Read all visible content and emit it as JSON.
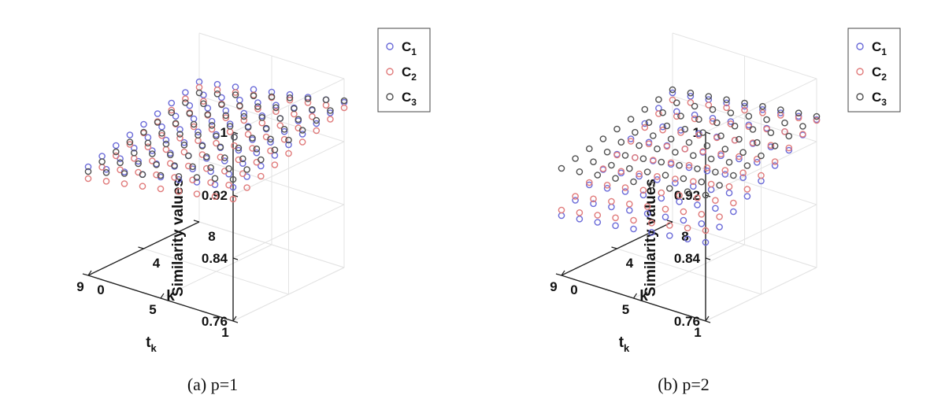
{
  "chart_data": [
    {
      "type": "scatter",
      "subtype": "3d-scatter",
      "caption": "(a) p=1",
      "xlabel": "t",
      "xlabel_sub": "k",
      "ylabel": "k",
      "zlabel": "Similarity values",
      "x_ticks": [
        "1",
        "5",
        "9"
      ],
      "y_ticks": [
        "0",
        "4",
        "8"
      ],
      "z_ticks": [
        "0.76",
        "0.84",
        "0.92",
        "1"
      ],
      "xlim": [
        1,
        9
      ],
      "ylim": [
        0,
        8
      ],
      "zlim": [
        0.76,
        1
      ],
      "grid": true,
      "legend_position": "top-right",
      "legend": [
        {
          "label": "C",
          "sub": "1",
          "color": "#6a6ad8"
        },
        {
          "label": "C",
          "sub": "2",
          "color": "#e07a7a"
        },
        {
          "label": "C",
          "sub": "3",
          "color": "#505050"
        }
      ],
      "series": [
        {
          "name": "C1",
          "color": "#6a6ad8",
          "base": 0.93,
          "slope_t": -0.004,
          "slope_k": 0.005
        },
        {
          "name": "C2",
          "color": "#e07a7a",
          "base": 0.915,
          "slope_t": -0.004,
          "slope_k": 0.006
        },
        {
          "name": "C3",
          "color": "#505050",
          "base": 0.94,
          "slope_t": -0.006,
          "slope_k": 0.004
        }
      ]
    },
    {
      "type": "scatter",
      "subtype": "3d-scatter",
      "caption": "(b) p=2",
      "xlabel": "t",
      "xlabel_sub": "k",
      "ylabel": "k",
      "zlabel": "Similarity values",
      "x_ticks": [
        "1",
        "5",
        "9"
      ],
      "y_ticks": [
        "0",
        "4",
        "8"
      ],
      "z_ticks": [
        "0.76",
        "0.84",
        "0.92",
        "1"
      ],
      "xlim": [
        1,
        9
      ],
      "ylim": [
        0,
        8
      ],
      "zlim": [
        0.76,
        1
      ],
      "grid": true,
      "legend_position": "top-right",
      "legend": [
        {
          "label": "C",
          "sub": "1",
          "color": "#6a6ad8"
        },
        {
          "label": "C",
          "sub": "2",
          "color": "#e07a7a"
        },
        {
          "label": "C",
          "sub": "3",
          "color": "#505050"
        }
      ],
      "series": [
        {
          "name": "C1",
          "color": "#6a6ad8",
          "base": 0.86,
          "slope_t": -0.003,
          "slope_k": 0.011
        },
        {
          "name": "C2",
          "color": "#e07a7a",
          "base": 0.875,
          "slope_t": -0.004,
          "slope_k": 0.009
        },
        {
          "name": "C3",
          "color": "#505050",
          "base": 0.92,
          "slope_t": -0.003,
          "slope_k": 0.004
        }
      ]
    }
  ]
}
